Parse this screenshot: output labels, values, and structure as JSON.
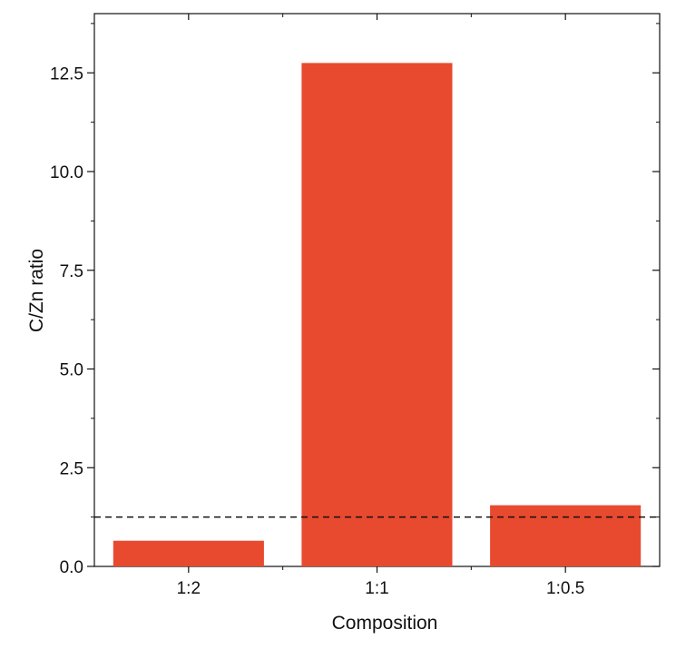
{
  "chart_data": {
    "type": "bar",
    "categories": [
      "1:2",
      "1:1",
      "1:0.5"
    ],
    "values": [
      0.65,
      12.75,
      1.55
    ],
    "xlabel": "Composition",
    "ylabel": "C/Zn ratio",
    "ylim": [
      0,
      14
    ],
    "yticks": [
      0.0,
      2.5,
      5.0,
      7.5,
      10.0,
      12.5
    ],
    "ytick_labels": [
      "0.0",
      "2.5",
      "5.0",
      "7.5",
      "10.0",
      "12.5"
    ],
    "reference_line": {
      "y": 1.25,
      "style": "dashed"
    },
    "grid": false,
    "bar_color": "#e84a2f"
  }
}
